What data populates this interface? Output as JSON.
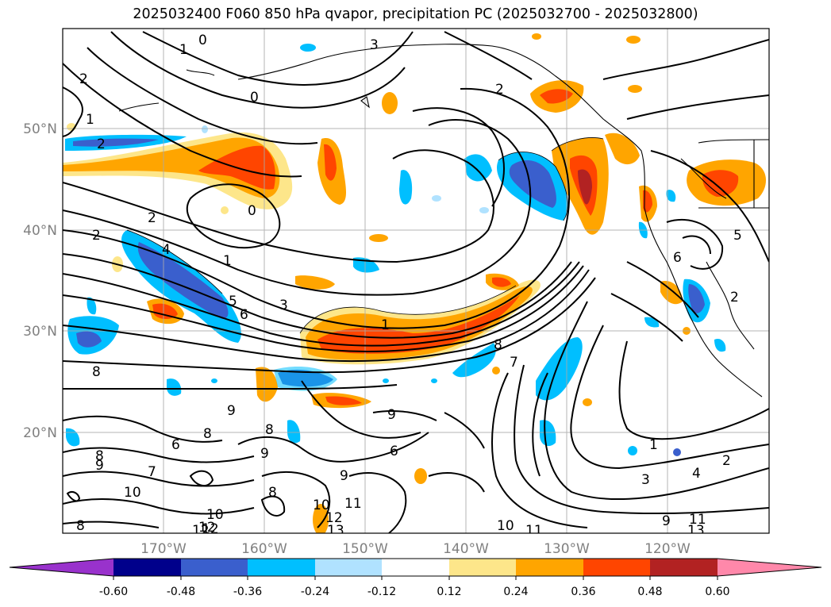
{
  "title": "2025032400 F060 850 hPa qvapor, precipitation PC (2025032700 - 2025032800)",
  "map": {
    "lat_labels": [
      "20°N",
      "30°N",
      "40°N",
      "50°N"
    ],
    "lon_labels": [
      "170°W",
      "160°W",
      "150°W",
      "140°W",
      "130°W",
      "120°W"
    ],
    "contour_labels": [
      "0",
      "1",
      "2",
      "3",
      "2",
      "1",
      "2",
      "0",
      "2",
      "1",
      "0",
      "2",
      "3",
      "4",
      "5",
      "6",
      "8",
      "9",
      "8",
      "6",
      "9",
      "6",
      "9",
      "8",
      "10",
      "11",
      "12",
      "13",
      "10",
      "11",
      "12",
      "13",
      "1",
      "7",
      "8",
      "9",
      "1",
      "2",
      "3",
      "4",
      "8",
      "9",
      "10",
      "11",
      "12",
      "5",
      "6",
      "2",
      "9",
      "8",
      "7",
      "8",
      "10",
      "12"
    ]
  },
  "colorbar": {
    "ticks": [
      "-0.60",
      "-0.48",
      "-0.36",
      "-0.24",
      "-0.12",
      "0.12",
      "0.24",
      "0.36",
      "0.48",
      "0.60"
    ],
    "colors": [
      "#9932cc",
      "#00008b",
      "#3a5fcd",
      "#00bfff",
      "#b0e2ff",
      "#ffffff",
      "#fde68a",
      "#ffa500",
      "#ff4500",
      "#b22222",
      "#ff88aa"
    ]
  }
}
